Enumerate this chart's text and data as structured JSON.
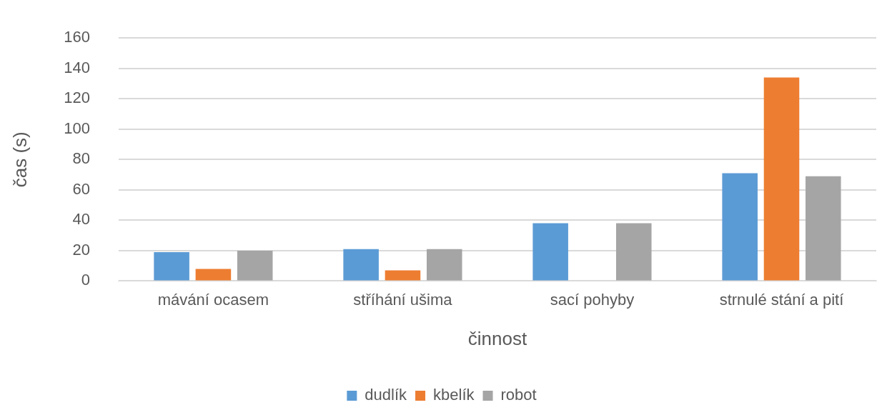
{
  "chart_data": {
    "type": "bar",
    "xlabel": "činnost",
    "ylabel": "čas (s)",
    "categories": [
      "mávání ocasem",
      "stříhání ušima",
      "sací pohyby",
      "strnulé stání a pití"
    ],
    "series": [
      {
        "name": "dudlík",
        "color": "#5b9bd5",
        "values": [
          19,
          21,
          38,
          71
        ]
      },
      {
        "name": "kbelík",
        "color": "#ed7d31",
        "values": [
          8,
          7,
          null,
          134
        ]
      },
      {
        "name": "robot",
        "color": "#a5a5a5",
        "values": [
          20,
          21,
          38,
          69
        ]
      }
    ],
    "ylim": [
      0,
      160
    ],
    "yticks": [
      0,
      20,
      40,
      60,
      80,
      100,
      120,
      140,
      160
    ],
    "grid": "y",
    "legend": "bottom"
  }
}
